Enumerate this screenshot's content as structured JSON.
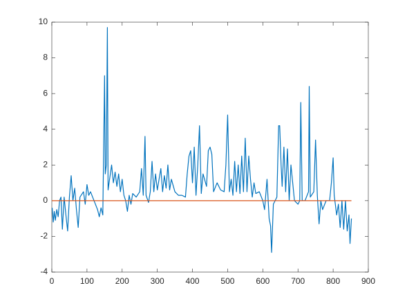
{
  "chart_data": {
    "type": "line",
    "xlim": [
      0,
      900
    ],
    "xticks": [
      0,
      100,
      200,
      300,
      400,
      500,
      600,
      700,
      800,
      900
    ],
    "ylim": [
      -4,
      10
    ],
    "yticks": [
      -4,
      -2,
      0,
      2,
      4,
      6,
      8,
      10
    ],
    "box": true,
    "series": [
      {
        "color": "#0072bd",
        "x": [
          1,
          4,
          7,
          10,
          14,
          18,
          22,
          26,
          30,
          35,
          40,
          45,
          50,
          55,
          60,
          65,
          70,
          75,
          80,
          90,
          95,
          100,
          105,
          110,
          130,
          135,
          140,
          145,
          150,
          152,
          155,
          158,
          160,
          165,
          170,
          175,
          180,
          185,
          190,
          195,
          200,
          205,
          210,
          215,
          220,
          225,
          230,
          240,
          250,
          255,
          260,
          265,
          268,
          275,
          280,
          285,
          290,
          295,
          300,
          310,
          315,
          320,
          325,
          330,
          335,
          340,
          350,
          360,
          370,
          380,
          385,
          390,
          395,
          400,
          405,
          410,
          415,
          420,
          425,
          430,
          440,
          445,
          450,
          455,
          460,
          470,
          480,
          490,
          495,
          500,
          505,
          510,
          515,
          520,
          525,
          530,
          535,
          540,
          545,
          550,
          555,
          560,
          565,
          570,
          575,
          580,
          590,
          600,
          605,
          612,
          618,
          622,
          625,
          630,
          640,
          645,
          648,
          652,
          655,
          660,
          665,
          670,
          675,
          680,
          690,
          700,
          705,
          708,
          712,
          720,
          730,
          732,
          735,
          745,
          750,
          755,
          760,
          765,
          770,
          780,
          790,
          795,
          800,
          803,
          810,
          815,
          820,
          825,
          830,
          835,
          840,
          845,
          848,
          852
        ],
        "values": [
          -0.4,
          -1.2,
          -0.6,
          -1.1,
          -0.5,
          -0.9,
          0.0,
          0.2,
          -1.6,
          0.2,
          -0.8,
          -1.7,
          0.2,
          1.4,
          0.0,
          0.7,
          -0.5,
          -1.5,
          0.2,
          0.5,
          -0.2,
          0.9,
          0.3,
          0.5,
          -0.5,
          -0.9,
          -0.4,
          -0.8,
          7.0,
          1.5,
          2.0,
          9.7,
          0.6,
          1.3,
          2.0,
          1.0,
          1.6,
          0.8,
          1.5,
          0.5,
          1.2,
          0.3,
          0.0,
          -0.6,
          0.3,
          -0.2,
          0.4,
          0.2,
          0.5,
          1.8,
          0.3,
          3.6,
          0.3,
          -0.1,
          0.5,
          2.2,
          0.5,
          1.5,
          0.6,
          1.8,
          0.5,
          1.4,
          0.7,
          2.0,
          0.6,
          1.2,
          0.5,
          0.3,
          0.3,
          0.2,
          1.5,
          2.5,
          2.8,
          1.0,
          3.0,
          0.3,
          2.0,
          4.2,
          0.4,
          1.5,
          0.8,
          2.8,
          3.0,
          2.6,
          0.5,
          1.0,
          0.6,
          0.5,
          2.0,
          4.8,
          0.5,
          1.2,
          0.3,
          2.2,
          0.5,
          2.0,
          0.4,
          2.5,
          0.5,
          3.5,
          0.5,
          2.5,
          1.2,
          0.2,
          1.0,
          0.4,
          0.5,
          0.0,
          -0.5,
          1.2,
          -1.0,
          -1.4,
          -2.9,
          -0.2,
          0.2,
          4.2,
          4.2,
          2.0,
          0.8,
          3.0,
          0.5,
          2.9,
          0.0,
          2.0,
          0.0,
          -0.2,
          0.0,
          5.5,
          0.0,
          0.0,
          0.5,
          6.4,
          0.2,
          0.5,
          3.4,
          0.3,
          -1.3,
          0.0,
          -0.5,
          0.0,
          0.0,
          1.0,
          2.4,
          0.3,
          -0.8,
          -0.2,
          -1.5,
          0.0,
          -1.6,
          0.0,
          -1.7,
          -0.8,
          -2.4,
          -1.0
        ]
      },
      {
        "color": "#d95319",
        "x": [
          0,
          852
        ],
        "values": [
          0,
          0
        ]
      }
    ]
  }
}
